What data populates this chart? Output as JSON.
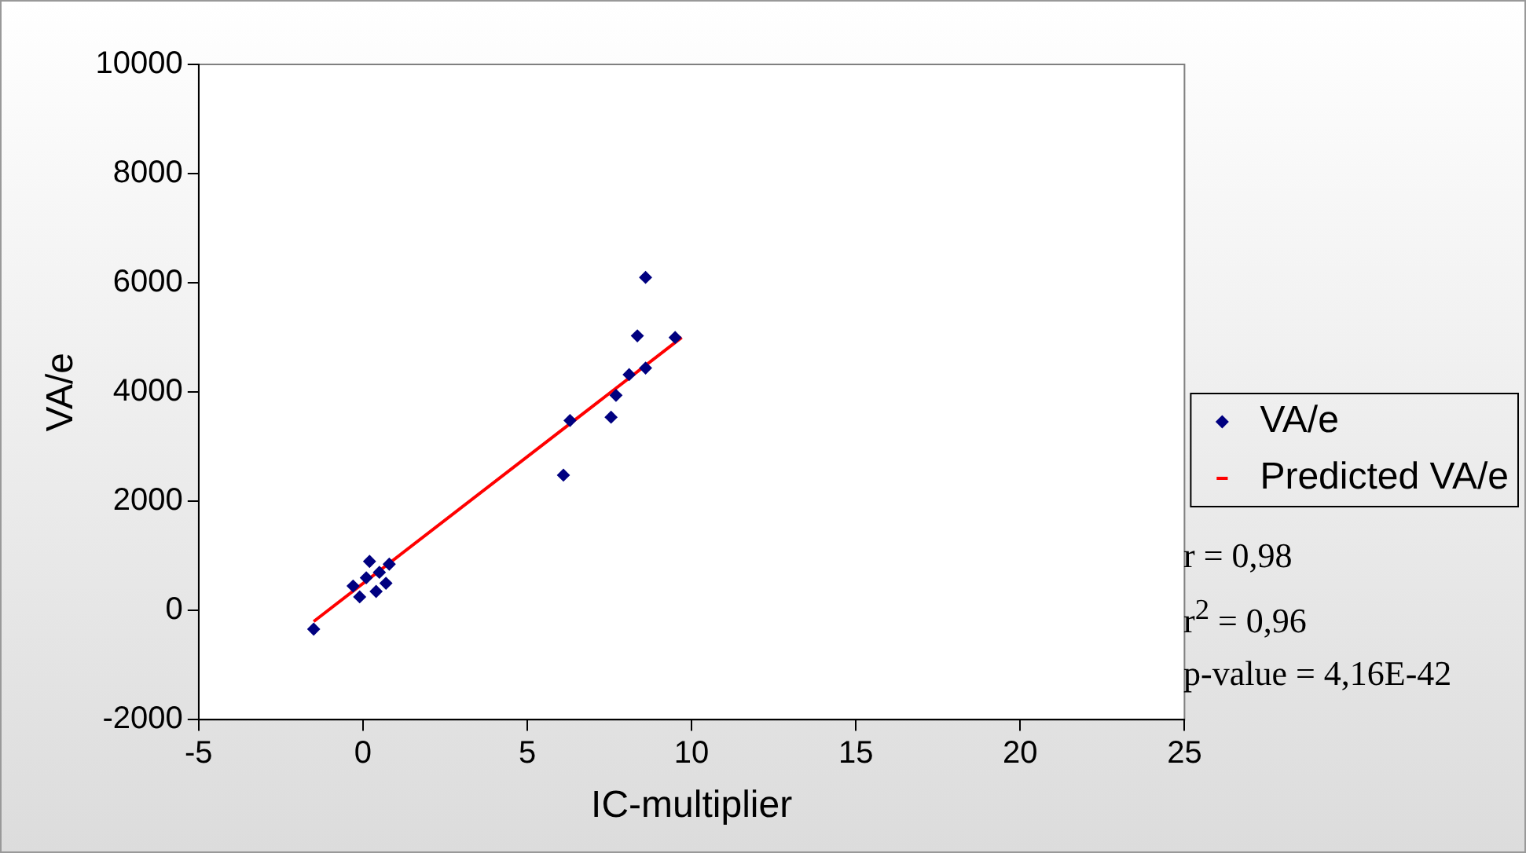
{
  "chart_data": {
    "type": "scatter",
    "xlabel": "IC-multiplier",
    "ylabel": "VA/e",
    "xlim": [
      -5,
      25
    ],
    "xticks": [
      -5,
      0,
      5,
      10,
      15,
      20,
      25
    ],
    "ylim": [
      -2000,
      10000
    ],
    "yticks": [
      -2000,
      0,
      2000,
      4000,
      6000,
      8000,
      10000
    ],
    "grid": false,
    "legend": "right",
    "series": [
      {
        "name": "VA/e",
        "color": "#000080",
        "marker": "diamond",
        "x": [
          -1.5,
          -0.3,
          -0.1,
          0.1,
          0.2,
          0.4,
          0.5,
          0.7,
          0.8,
          6.1,
          6.3,
          7.55,
          7.7,
          8.1,
          8.35,
          8.6,
          8.6,
          9.5
        ],
        "values": [
          -340,
          450,
          250,
          600,
          900,
          350,
          700,
          500,
          850,
          2480,
          3480,
          3540,
          3940,
          4320,
          5030,
          4440,
          6100,
          5000
        ]
      },
      {
        "name": "Predicted VA/e",
        "type": "line",
        "color": "#ff0000",
        "marker": "none",
        "x": [
          -1.5,
          9.7
        ],
        "values": [
          -200,
          5000
        ]
      }
    ],
    "annotations": [
      "r = 0,98",
      "r$^{2}$ = 0,96",
      "p-value = 4,16E-42"
    ]
  }
}
